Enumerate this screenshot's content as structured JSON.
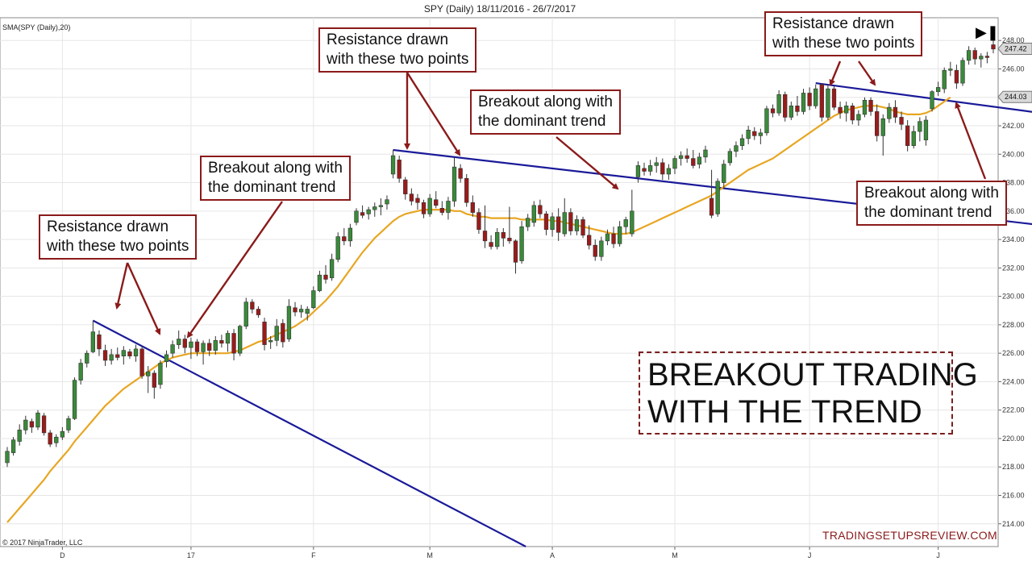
{
  "chart_data": {
    "type": "candlestick",
    "title": "SPY (Daily)  18/11/2016 - 26/7/2017",
    "indicator_label": "SMA(SPY (Daily),20)",
    "copyright": "© 2017 NinjaTrader, LLC",
    "ylim": [
      212.4,
      249.6
    ],
    "y_ticks": [
      "214.00",
      "216.00",
      "218.00",
      "220.00",
      "222.00",
      "224.00",
      "226.00",
      "228.00",
      "230.00",
      "232.00",
      "234.00",
      "236.00",
      "238.00",
      "240.00",
      "242.00",
      "244.00",
      "246.00",
      "248.00"
    ],
    "x_ticks": [
      "D",
      "17",
      "F",
      "M",
      "A",
      "M",
      "J",
      "J"
    ],
    "last_price_label": "247.42",
    "line_price_label": "244.03",
    "grid": true,
    "colors": {
      "up": "#3a8a3a",
      "down": "#9b1b1b",
      "sma": "#e8a623",
      "trendline": "#1a1a99",
      "arrow": "#8b1a1a"
    },
    "candles": [
      {
        "o": 218.3,
        "h": 219.4,
        "l": 218.0,
        "c": 219.1
      },
      {
        "o": 219.0,
        "h": 220.1,
        "l": 218.8,
        "c": 219.9
      },
      {
        "o": 219.8,
        "h": 221.0,
        "l": 219.5,
        "c": 220.6
      },
      {
        "o": 220.6,
        "h": 221.6,
        "l": 220.3,
        "c": 221.3
      },
      {
        "o": 221.2,
        "h": 221.4,
        "l": 220.4,
        "c": 220.8
      },
      {
        "o": 220.8,
        "h": 222.0,
        "l": 220.6,
        "c": 221.8
      },
      {
        "o": 221.6,
        "h": 221.8,
        "l": 220.2,
        "c": 220.4
      },
      {
        "o": 220.4,
        "h": 220.6,
        "l": 219.4,
        "c": 219.6
      },
      {
        "o": 219.7,
        "h": 220.3,
        "l": 219.4,
        "c": 220.1
      },
      {
        "o": 220.1,
        "h": 220.8,
        "l": 219.9,
        "c": 220.5
      },
      {
        "o": 220.6,
        "h": 221.6,
        "l": 220.4,
        "c": 221.4
      },
      {
        "o": 221.4,
        "h": 224.3,
        "l": 221.3,
        "c": 224.1
      },
      {
        "o": 224.1,
        "h": 225.6,
        "l": 223.8,
        "c": 225.3
      },
      {
        "o": 225.3,
        "h": 226.2,
        "l": 225.0,
        "c": 226.0
      },
      {
        "o": 226.1,
        "h": 228.3,
        "l": 226.0,
        "c": 227.5
      },
      {
        "o": 227.3,
        "h": 227.6,
        "l": 225.8,
        "c": 226.3
      },
      {
        "o": 226.2,
        "h": 226.6,
        "l": 225.1,
        "c": 225.5
      },
      {
        "o": 225.5,
        "h": 226.3,
        "l": 225.2,
        "c": 225.9
      },
      {
        "o": 225.9,
        "h": 226.4,
        "l": 225.5,
        "c": 225.7
      },
      {
        "o": 225.8,
        "h": 226.5,
        "l": 225.2,
        "c": 226.2
      },
      {
        "o": 226.1,
        "h": 226.3,
        "l": 225.6,
        "c": 225.8
      },
      {
        "o": 225.8,
        "h": 226.6,
        "l": 225.4,
        "c": 226.3
      },
      {
        "o": 226.3,
        "h": 226.5,
        "l": 224.2,
        "c": 224.4
      },
      {
        "o": 224.4,
        "h": 225.1,
        "l": 223.2,
        "c": 224.7
      },
      {
        "o": 224.6,
        "h": 224.8,
        "l": 222.8,
        "c": 223.6
      },
      {
        "o": 223.8,
        "h": 225.5,
        "l": 223.5,
        "c": 225.3
      },
      {
        "o": 225.4,
        "h": 226.2,
        "l": 225.0,
        "c": 225.9
      },
      {
        "o": 226.0,
        "h": 226.9,
        "l": 225.7,
        "c": 226.6
      },
      {
        "o": 226.6,
        "h": 227.6,
        "l": 226.3,
        "c": 227.0
      },
      {
        "o": 227.0,
        "h": 227.3,
        "l": 226.0,
        "c": 226.4
      },
      {
        "o": 226.4,
        "h": 227.1,
        "l": 225.6,
        "c": 226.8
      },
      {
        "o": 226.8,
        "h": 227.0,
        "l": 225.8,
        "c": 226.1
      },
      {
        "o": 226.1,
        "h": 226.9,
        "l": 225.2,
        "c": 226.7
      },
      {
        "o": 226.7,
        "h": 227.0,
        "l": 225.8,
        "c": 226.2
      },
      {
        "o": 226.2,
        "h": 227.2,
        "l": 225.9,
        "c": 226.9
      },
      {
        "o": 226.9,
        "h": 227.3,
        "l": 226.4,
        "c": 226.7
      },
      {
        "o": 226.7,
        "h": 227.6,
        "l": 226.1,
        "c": 227.4
      },
      {
        "o": 227.4,
        "h": 227.7,
        "l": 225.5,
        "c": 226.0
      },
      {
        "o": 226.0,
        "h": 228.0,
        "l": 225.8,
        "c": 227.9
      },
      {
        "o": 227.9,
        "h": 229.9,
        "l": 227.7,
        "c": 229.6
      },
      {
        "o": 229.6,
        "h": 229.8,
        "l": 228.8,
        "c": 229.1
      },
      {
        "o": 229.1,
        "h": 229.3,
        "l": 228.5,
        "c": 228.7
      },
      {
        "o": 228.2,
        "h": 228.5,
        "l": 226.2,
        "c": 226.6
      },
      {
        "o": 226.8,
        "h": 227.2,
        "l": 226.3,
        "c": 226.9
      },
      {
        "o": 226.9,
        "h": 228.4,
        "l": 226.5,
        "c": 227.9
      },
      {
        "o": 228.1,
        "h": 228.4,
        "l": 226.4,
        "c": 226.8
      },
      {
        "o": 227.0,
        "h": 229.8,
        "l": 226.8,
        "c": 229.3
      },
      {
        "o": 229.2,
        "h": 229.6,
        "l": 228.6,
        "c": 228.9
      },
      {
        "o": 228.9,
        "h": 229.4,
        "l": 228.5,
        "c": 229.1
      },
      {
        "o": 228.8,
        "h": 229.3,
        "l": 228.3,
        "c": 229.1
      },
      {
        "o": 229.2,
        "h": 230.7,
        "l": 229.1,
        "c": 230.4
      },
      {
        "o": 230.4,
        "h": 231.8,
        "l": 230.3,
        "c": 231.5
      },
      {
        "o": 231.5,
        "h": 232.2,
        "l": 230.9,
        "c": 231.2
      },
      {
        "o": 231.3,
        "h": 233.0,
        "l": 231.1,
        "c": 232.6
      },
      {
        "o": 232.6,
        "h": 234.5,
        "l": 232.4,
        "c": 234.2
      },
      {
        "o": 234.2,
        "h": 234.8,
        "l": 233.6,
        "c": 233.9
      },
      {
        "o": 233.9,
        "h": 235.1,
        "l": 233.5,
        "c": 234.8
      },
      {
        "o": 235.2,
        "h": 236.2,
        "l": 235.0,
        "c": 236.0
      },
      {
        "o": 235.9,
        "h": 236.4,
        "l": 235.5,
        "c": 235.7
      },
      {
        "o": 235.8,
        "h": 236.3,
        "l": 235.4,
        "c": 236.1
      },
      {
        "o": 236.1,
        "h": 236.6,
        "l": 235.6,
        "c": 236.3
      },
      {
        "o": 236.3,
        "h": 236.9,
        "l": 235.7,
        "c": 236.4
      },
      {
        "o": 236.5,
        "h": 237.1,
        "l": 236.1,
        "c": 236.8
      },
      {
        "o": 238.6,
        "h": 240.3,
        "l": 238.3,
        "c": 239.9
      },
      {
        "o": 239.6,
        "h": 239.9,
        "l": 238.0,
        "c": 238.3
      },
      {
        "o": 238.2,
        "h": 238.4,
        "l": 236.8,
        "c": 237.2
      },
      {
        "o": 237.2,
        "h": 237.6,
        "l": 236.4,
        "c": 236.7
      },
      {
        "o": 236.9,
        "h": 237.2,
        "l": 236.1,
        "c": 236.6
      },
      {
        "o": 236.6,
        "h": 236.8,
        "l": 235.5,
        "c": 235.8
      },
      {
        "o": 235.8,
        "h": 237.2,
        "l": 235.6,
        "c": 236.9
      },
      {
        "o": 236.8,
        "h": 237.4,
        "l": 236.2,
        "c": 236.4
      },
      {
        "o": 236.2,
        "h": 236.7,
        "l": 235.7,
        "c": 235.9
      },
      {
        "o": 235.9,
        "h": 237.0,
        "l": 235.4,
        "c": 236.7
      },
      {
        "o": 236.7,
        "h": 239.8,
        "l": 236.3,
        "c": 239.1
      },
      {
        "o": 239.0,
        "h": 239.3,
        "l": 238.0,
        "c": 238.3
      },
      {
        "o": 238.3,
        "h": 238.6,
        "l": 236.3,
        "c": 236.6
      },
      {
        "o": 236.6,
        "h": 237.1,
        "l": 235.6,
        "c": 235.9
      },
      {
        "o": 235.9,
        "h": 236.2,
        "l": 234.4,
        "c": 234.7
      },
      {
        "o": 234.6,
        "h": 236.4,
        "l": 233.4,
        "c": 233.9
      },
      {
        "o": 233.8,
        "h": 234.3,
        "l": 233.3,
        "c": 233.5
      },
      {
        "o": 233.5,
        "h": 234.8,
        "l": 233.3,
        "c": 234.5
      },
      {
        "o": 234.5,
        "h": 234.8,
        "l": 233.5,
        "c": 234.1
      },
      {
        "o": 234.1,
        "h": 236.3,
        "l": 233.7,
        "c": 233.9
      },
      {
        "o": 233.9,
        "h": 234.0,
        "l": 231.6,
        "c": 232.4
      },
      {
        "o": 232.5,
        "h": 235.3,
        "l": 232.3,
        "c": 234.9
      },
      {
        "o": 234.9,
        "h": 235.8,
        "l": 234.6,
        "c": 235.5
      },
      {
        "o": 235.2,
        "h": 236.7,
        "l": 234.9,
        "c": 236.4
      },
      {
        "o": 236.4,
        "h": 236.8,
        "l": 235.5,
        "c": 235.8
      },
      {
        "o": 235.8,
        "h": 236.0,
        "l": 234.3,
        "c": 234.7
      },
      {
        "o": 234.7,
        "h": 235.9,
        "l": 234.2,
        "c": 235.6
      },
      {
        "o": 235.6,
        "h": 236.2,
        "l": 233.9,
        "c": 234.5
      },
      {
        "o": 234.4,
        "h": 236.9,
        "l": 234.2,
        "c": 235.9
      },
      {
        "o": 235.9,
        "h": 236.2,
        "l": 234.3,
        "c": 234.6
      },
      {
        "o": 234.6,
        "h": 235.7,
        "l": 234.3,
        "c": 235.4
      },
      {
        "o": 235.4,
        "h": 235.6,
        "l": 234.1,
        "c": 234.3
      },
      {
        "o": 234.3,
        "h": 235.0,
        "l": 233.3,
        "c": 233.6
      },
      {
        "o": 233.6,
        "h": 234.0,
        "l": 232.5,
        "c": 232.8
      },
      {
        "o": 232.8,
        "h": 234.2,
        "l": 232.5,
        "c": 233.9
      },
      {
        "o": 233.9,
        "h": 234.7,
        "l": 233.6,
        "c": 234.4
      },
      {
        "o": 234.4,
        "h": 234.9,
        "l": 233.4,
        "c": 233.7
      },
      {
        "o": 233.7,
        "h": 235.3,
        "l": 233.5,
        "c": 234.9
      },
      {
        "o": 234.9,
        "h": 235.6,
        "l": 234.4,
        "c": 235.4
      },
      {
        "o": 234.4,
        "h": 237.5,
        "l": 234.2,
        "c": 236.0
      },
      {
        "o": 238.4,
        "h": 239.5,
        "l": 238.0,
        "c": 239.2
      },
      {
        "o": 239.0,
        "h": 239.4,
        "l": 238.5,
        "c": 238.8
      },
      {
        "o": 238.8,
        "h": 239.6,
        "l": 238.5,
        "c": 239.2
      },
      {
        "o": 239.2,
        "h": 239.8,
        "l": 238.7,
        "c": 239.4
      },
      {
        "o": 239.4,
        "h": 239.7,
        "l": 238.2,
        "c": 238.6
      },
      {
        "o": 238.6,
        "h": 239.3,
        "l": 238.2,
        "c": 239.0
      },
      {
        "o": 239.0,
        "h": 239.9,
        "l": 238.6,
        "c": 239.7
      },
      {
        "o": 239.7,
        "h": 240.2,
        "l": 239.2,
        "c": 239.9
      },
      {
        "o": 239.9,
        "h": 240.4,
        "l": 239.4,
        "c": 239.7
      },
      {
        "o": 239.7,
        "h": 240.3,
        "l": 239.0,
        "c": 239.2
      },
      {
        "o": 239.3,
        "h": 240.1,
        "l": 239.0,
        "c": 239.8
      },
      {
        "o": 239.8,
        "h": 240.6,
        "l": 239.4,
        "c": 240.3
      },
      {
        "o": 236.9,
        "h": 238.9,
        "l": 235.5,
        "c": 235.7
      },
      {
        "o": 235.8,
        "h": 238.3,
        "l": 235.6,
        "c": 238.1
      },
      {
        "o": 238.0,
        "h": 239.6,
        "l": 237.6,
        "c": 239.3
      },
      {
        "o": 239.4,
        "h": 240.4,
        "l": 239.2,
        "c": 240.2
      },
      {
        "o": 240.2,
        "h": 240.9,
        "l": 239.8,
        "c": 240.6
      },
      {
        "o": 240.6,
        "h": 241.4,
        "l": 240.3,
        "c": 241.1
      },
      {
        "o": 241.1,
        "h": 242.0,
        "l": 240.7,
        "c": 241.7
      },
      {
        "o": 241.6,
        "h": 241.9,
        "l": 241.0,
        "c": 241.3
      },
      {
        "o": 241.3,
        "h": 241.8,
        "l": 240.7,
        "c": 241.5
      },
      {
        "o": 241.5,
        "h": 243.4,
        "l": 241.3,
        "c": 243.2
      },
      {
        "o": 243.2,
        "h": 243.5,
        "l": 242.6,
        "c": 242.9
      },
      {
        "o": 242.9,
        "h": 244.5,
        "l": 242.7,
        "c": 244.2
      },
      {
        "o": 244.2,
        "h": 244.4,
        "l": 242.3,
        "c": 242.6
      },
      {
        "o": 242.6,
        "h": 243.7,
        "l": 242.4,
        "c": 243.4
      },
      {
        "o": 243.4,
        "h": 244.1,
        "l": 242.7,
        "c": 243.0
      },
      {
        "o": 243.0,
        "h": 244.6,
        "l": 242.8,
        "c": 244.3
      },
      {
        "o": 244.3,
        "h": 244.7,
        "l": 243.1,
        "c": 243.4
      },
      {
        "o": 243.4,
        "h": 244.9,
        "l": 243.2,
        "c": 244.6
      },
      {
        "o": 244.9,
        "h": 245.0,
        "l": 242.3,
        "c": 242.6
      },
      {
        "o": 242.6,
        "h": 244.9,
        "l": 242.4,
        "c": 244.6
      },
      {
        "o": 244.6,
        "h": 244.8,
        "l": 243.1,
        "c": 243.3
      },
      {
        "o": 243.3,
        "h": 243.7,
        "l": 242.5,
        "c": 242.9
      },
      {
        "o": 242.9,
        "h": 243.7,
        "l": 242.3,
        "c": 243.4
      },
      {
        "o": 243.4,
        "h": 243.6,
        "l": 242.1,
        "c": 242.4
      },
      {
        "o": 242.4,
        "h": 243.1,
        "l": 242.0,
        "c": 242.8
      },
      {
        "o": 242.8,
        "h": 244.0,
        "l": 242.6,
        "c": 243.8
      },
      {
        "o": 243.8,
        "h": 244.0,
        "l": 242.7,
        "c": 243.0
      },
      {
        "o": 243.0,
        "h": 243.5,
        "l": 240.9,
        "c": 241.3
      },
      {
        "o": 241.3,
        "h": 242.8,
        "l": 239.9,
        "c": 242.5
      },
      {
        "o": 242.5,
        "h": 243.6,
        "l": 242.2,
        "c": 243.3
      },
      {
        "o": 243.3,
        "h": 243.8,
        "l": 242.2,
        "c": 242.6
      },
      {
        "o": 242.6,
        "h": 243.0,
        "l": 241.7,
        "c": 242.1
      },
      {
        "o": 242.0,
        "h": 242.4,
        "l": 240.2,
        "c": 240.6
      },
      {
        "o": 240.6,
        "h": 242.0,
        "l": 240.4,
        "c": 241.6
      },
      {
        "o": 241.6,
        "h": 242.6,
        "l": 240.9,
        "c": 242.3
      },
      {
        "o": 241.0,
        "h": 242.7,
        "l": 240.6,
        "c": 242.4
      },
      {
        "o": 243.2,
        "h": 244.5,
        "l": 243.0,
        "c": 244.4
      },
      {
        "o": 244.4,
        "h": 245.1,
        "l": 244.1,
        "c": 244.7
      },
      {
        "o": 244.6,
        "h": 246.1,
        "l": 244.3,
        "c": 245.9
      },
      {
        "o": 245.9,
        "h": 246.5,
        "l": 245.5,
        "c": 246.0
      },
      {
        "o": 245.9,
        "h": 246.3,
        "l": 244.6,
        "c": 245.0
      },
      {
        "o": 245.0,
        "h": 246.8,
        "l": 244.8,
        "c": 246.6
      },
      {
        "o": 246.6,
        "h": 247.6,
        "l": 246.3,
        "c": 247.3
      },
      {
        "o": 247.3,
        "h": 247.5,
        "l": 246.3,
        "c": 246.7
      },
      {
        "o": 246.7,
        "h": 247.1,
        "l": 246.1,
        "c": 246.9
      },
      {
        "o": 246.9,
        "h": 247.2,
        "l": 246.4,
        "c": 246.8
      },
      {
        "o": 247.7,
        "h": 248.0,
        "l": 247.1,
        "c": 247.4
      }
    ],
    "sma_20": [
      214.1,
      214.6,
      215.1,
      215.6,
      216.1,
      216.6,
      217.1,
      217.7,
      218.2,
      218.7,
      219.2,
      219.8,
      220.3,
      220.8,
      221.3,
      221.8,
      222.3,
      222.7,
      223.1,
      223.5,
      223.8,
      224.1,
      224.4,
      224.7,
      225.0,
      225.3,
      225.5,
      225.7,
      225.8,
      225.9,
      226.0,
      226.0,
      226.0,
      226.0,
      226.0,
      226.0,
      226.0,
      226.1,
      226.2,
      226.4,
      226.6,
      226.8,
      226.9,
      227.1,
      227.3,
      227.5,
      227.7,
      227.9,
      228.2,
      228.5,
      228.9,
      229.3,
      229.7,
      230.2,
      230.7,
      231.3,
      231.9,
      232.5,
      233.1,
      233.6,
      234.1,
      234.5,
      234.9,
      235.3,
      235.6,
      235.8,
      235.9,
      236.0,
      236.1,
      236.1,
      236.1,
      236.1,
      236.1,
      236.0,
      236.0,
      235.8,
      235.7,
      235.6,
      235.6,
      235.5,
      235.5,
      235.5,
      235.5,
      235.5,
      235.4,
      235.4,
      235.4,
      235.4,
      235.4,
      235.3,
      235.3,
      235.2,
      235.1,
      235.0,
      234.9,
      234.8,
      234.7,
      234.6,
      234.5,
      234.4,
      234.4,
      234.4,
      234.5,
      234.7,
      234.9,
      235.1,
      235.3,
      235.5,
      235.7,
      235.9,
      236.1,
      236.3,
      236.5,
      236.7,
      236.9,
      237.1,
      237.4,
      237.7,
      238.0,
      238.3,
      238.6,
      238.9,
      239.1,
      239.3,
      239.5,
      239.7,
      240.0,
      240.3,
      240.6,
      240.9,
      241.2,
      241.5,
      241.8,
      242.1,
      242.4,
      242.7,
      242.9,
      243.1,
      243.2,
      243.3,
      243.4,
      243.4,
      243.4,
      243.3,
      243.2,
      243.0,
      242.9,
      242.8,
      242.8,
      242.8,
      242.9,
      243.1,
      243.4,
      243.7,
      244.0
    ]
  },
  "annotations": {
    "callout_1": {
      "line1": "Resistance drawn",
      "line2": "with these two points"
    },
    "callout_2": {
      "line1": "Breakout along with",
      "line2": "the dominant trend"
    },
    "callout_3": {
      "line1": "Resistance drawn",
      "line2": "with these two points"
    },
    "callout_4": {
      "line1": "Breakout along with",
      "line2": "the dominant trend"
    },
    "callout_5": {
      "line1": "Resistance drawn",
      "line2": "with these two points"
    },
    "callout_6": {
      "line1": "Breakout along with",
      "line2": "the dominant trend"
    },
    "headline": {
      "line1": "BREAKOUT TRADING",
      "line2": "WITH THE TREND"
    },
    "credit": "TRADINGSETUPSREVIEW.COM",
    "nav_icon": "skip-to-end-icon"
  }
}
